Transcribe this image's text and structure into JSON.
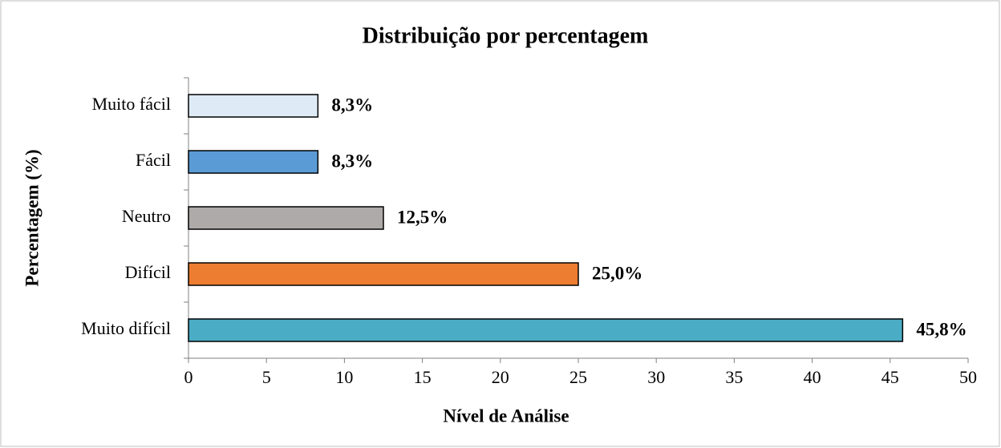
{
  "chart_data": {
    "type": "bar",
    "orientation": "horizontal",
    "title": "Distribuição por percentagem",
    "x_label": "Nível de Análise",
    "y_label": "Percentagem (%)",
    "categories": [
      "Muito fácil",
      "Fácil",
      "Neutro",
      "Difícil",
      "Muito difícil"
    ],
    "values": [
      8.3,
      8.3,
      12.5,
      25.0,
      45.8
    ],
    "value_labels": [
      "8,3%",
      "8,3%",
      "12,5%",
      "25,0%",
      "45,8%"
    ],
    "colors": [
      "#deebf7",
      "#5b9bd5",
      "#aeaaaa",
      "#ed7d31",
      "#4bacc6"
    ],
    "xlim": [
      0,
      50
    ],
    "xticks": [
      0,
      5,
      10,
      15,
      20,
      25,
      30,
      35,
      40,
      45,
      50
    ],
    "grid": false
  }
}
